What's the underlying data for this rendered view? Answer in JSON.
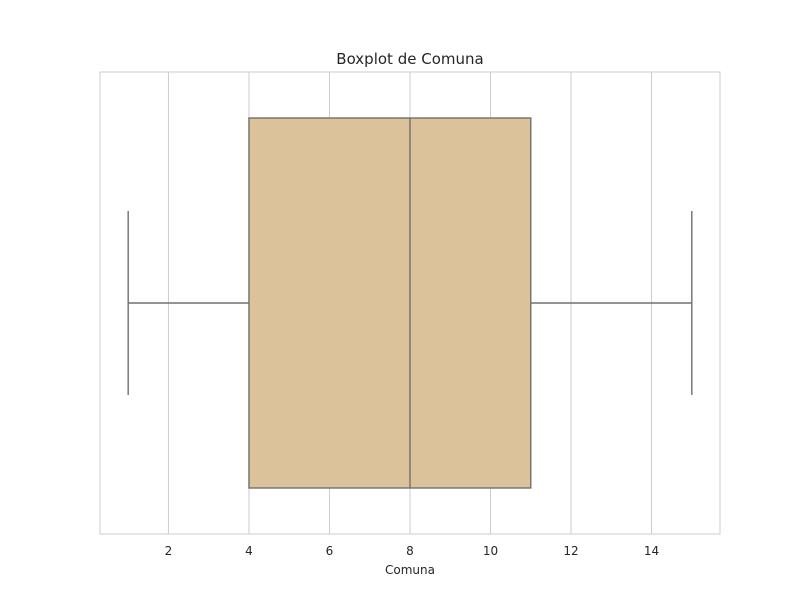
{
  "chart_data": {
    "type": "boxplot",
    "title": "Boxplot de Comuna",
    "xlabel": "Comuna",
    "ylabel": "",
    "orientation": "horizontal",
    "xlim": [
      0.3,
      15.7
    ],
    "xticks": [
      2,
      4,
      6,
      8,
      10,
      12,
      14
    ],
    "grid": true,
    "box": {
      "whisker_low": 1,
      "q1": 4,
      "median": 8,
      "q3": 11,
      "whisker_high": 15
    },
    "colors": {
      "box_fill": "#dbc29b",
      "line": "#707070",
      "grid": "#cccccc",
      "frame": "#cccccc"
    }
  }
}
